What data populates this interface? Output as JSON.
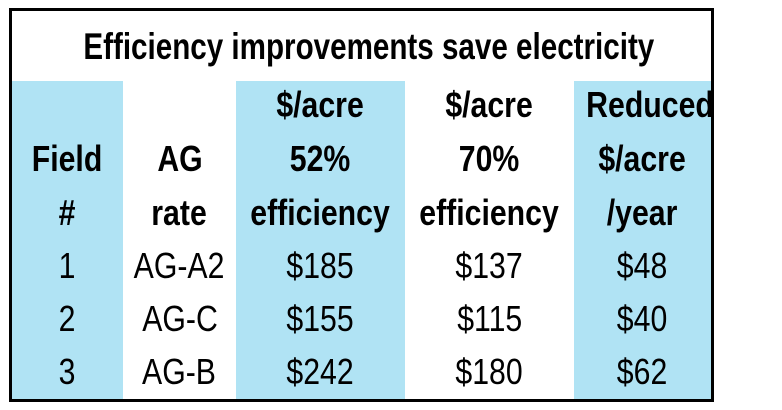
{
  "title": "Efficiency improvements save electricity",
  "colors": {
    "band": "#b0e3f4",
    "border": "#000000"
  },
  "headers": [
    [
      "",
      "Field",
      "#"
    ],
    [
      "",
      "AG",
      "rate"
    ],
    [
      "$/acre",
      "52%",
      "efficiency"
    ],
    [
      "$/acre",
      "70%",
      "efficiency"
    ],
    [
      "Reduced",
      "$/acre",
      "/year"
    ]
  ],
  "rows": [
    [
      "1",
      "AG-A2",
      "$185",
      "$137",
      "$48"
    ],
    [
      "2",
      "AG-C",
      "$155",
      "$115",
      "$40"
    ],
    [
      "3",
      "AG-B",
      "$242",
      "$180",
      "$62"
    ]
  ]
}
